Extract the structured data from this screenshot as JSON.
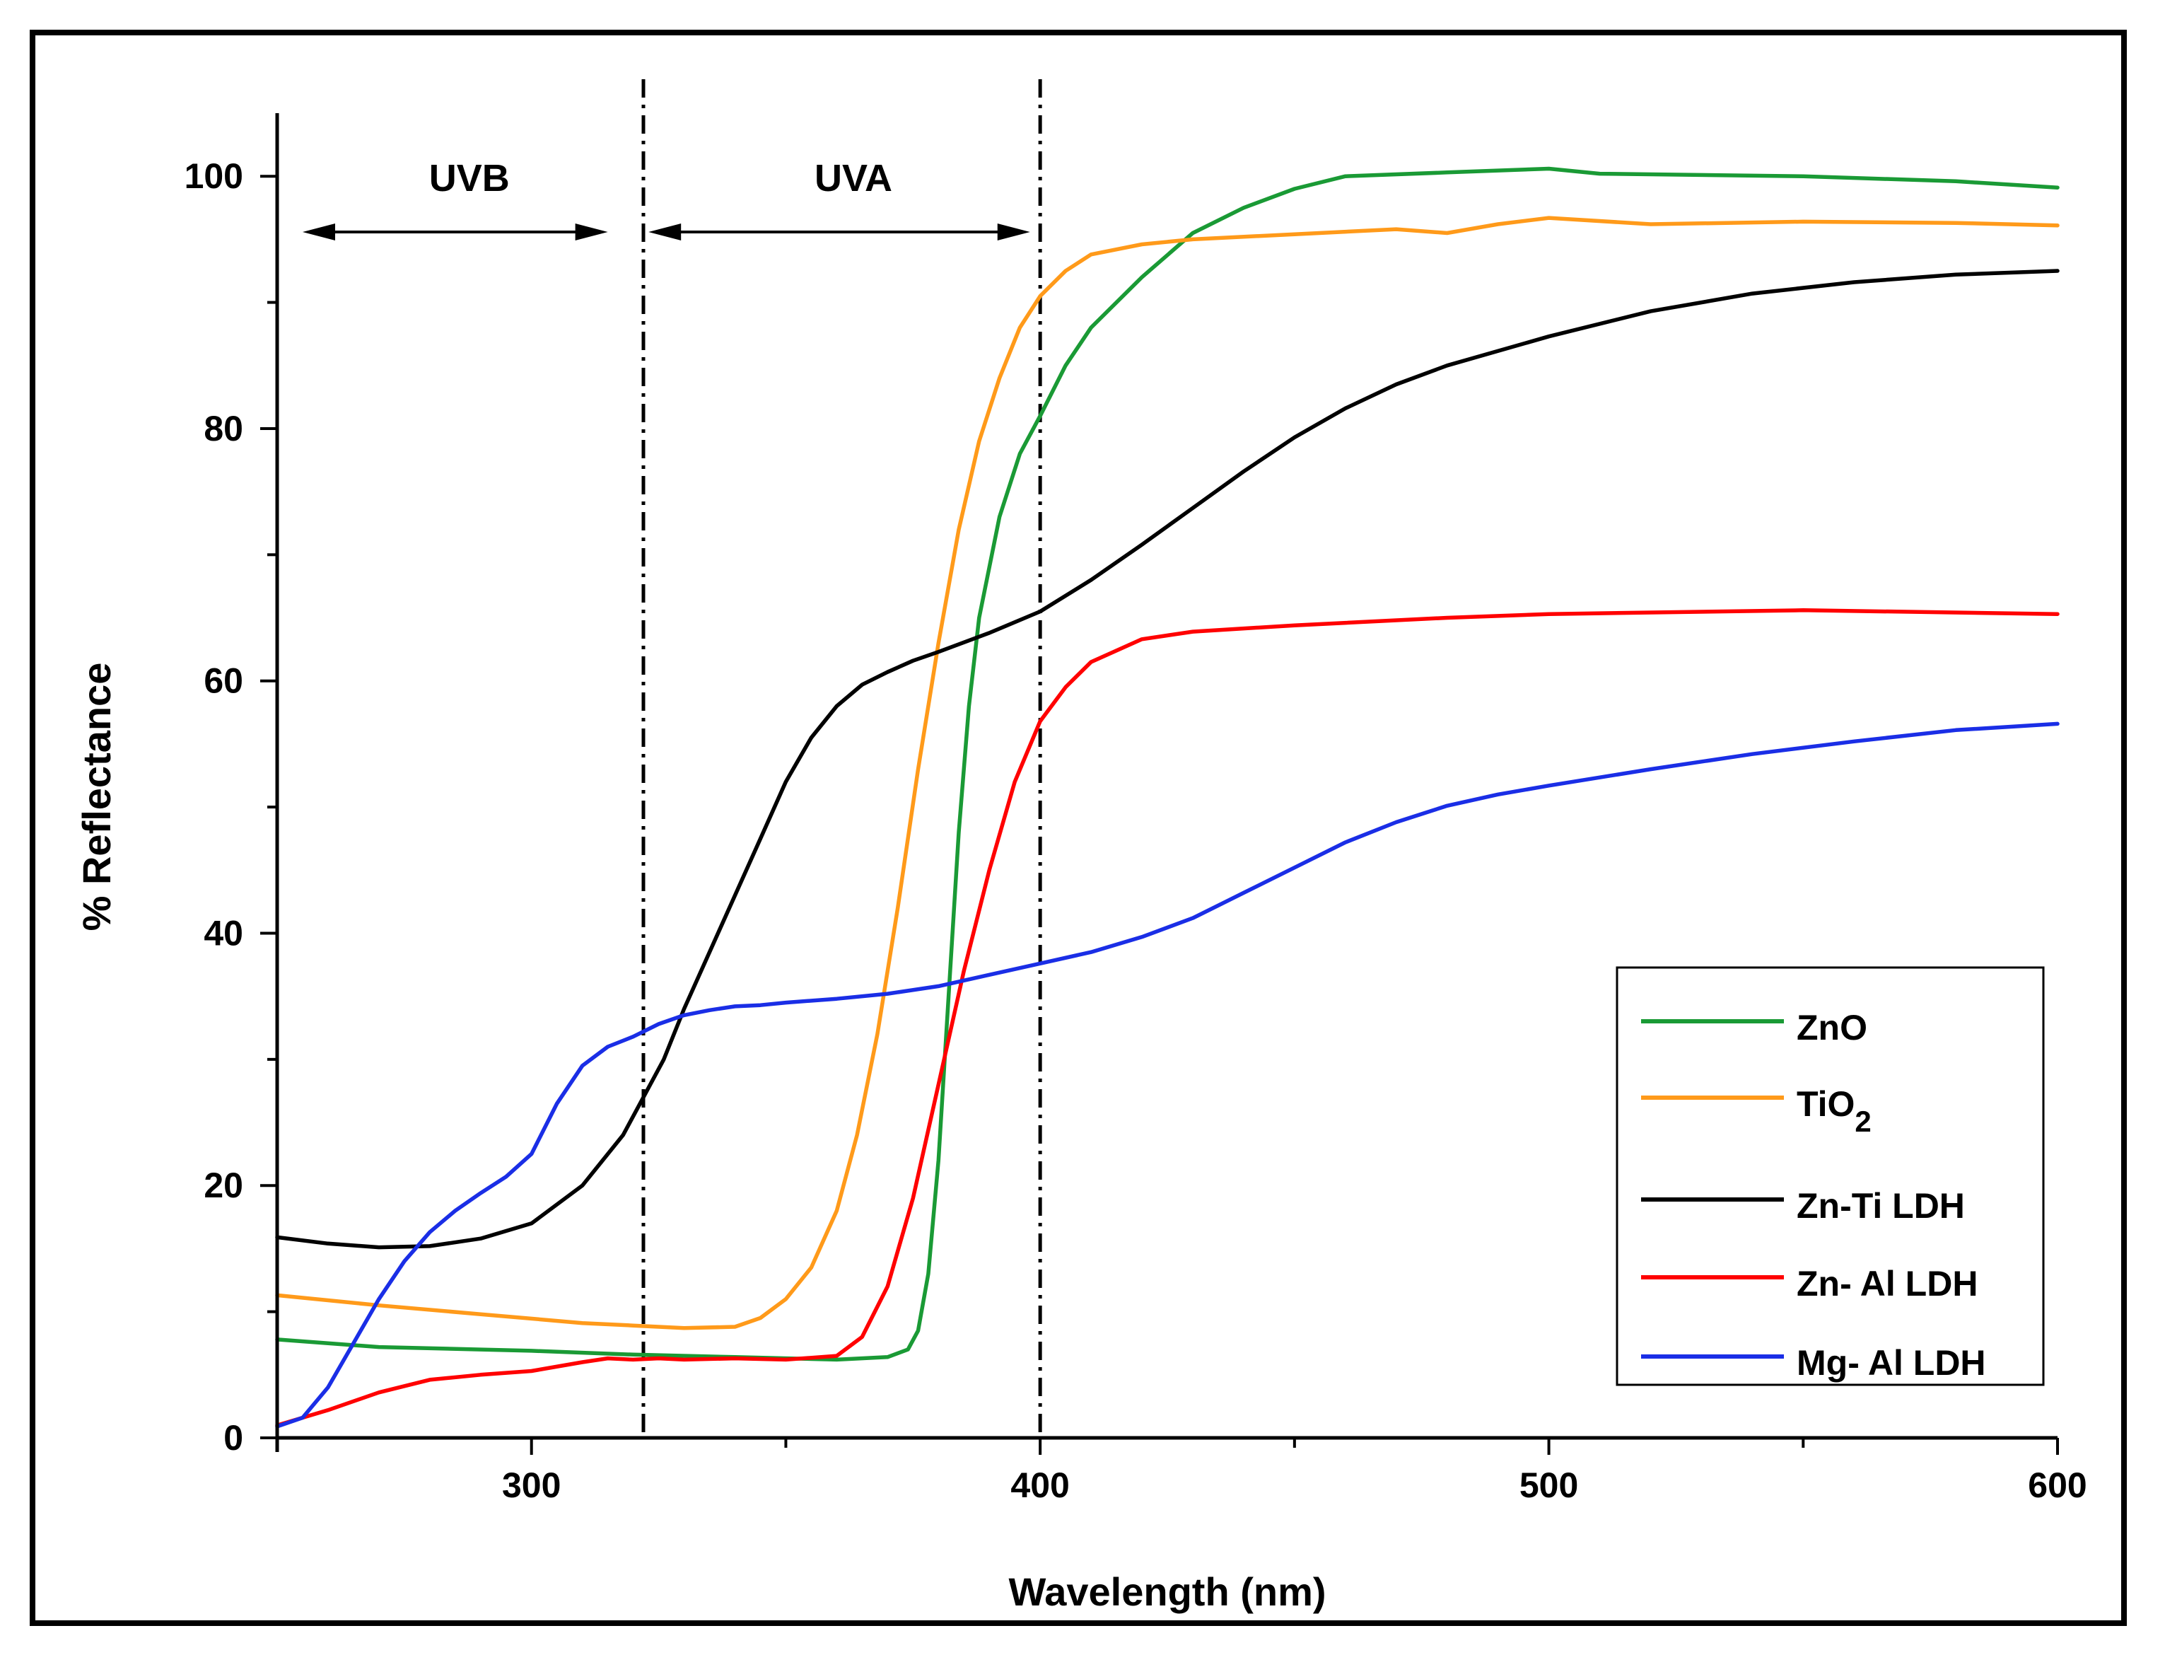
{
  "chart_data": {
    "type": "line",
    "xlabel": "Wavelength (nm)",
    "ylabel": "% Reflectance",
    "xlim": [
      250,
      600
    ],
    "ylim": [
      0,
      105
    ],
    "xticks": [
      300,
      400,
      500,
      600
    ],
    "yticks": [
      0,
      20,
      40,
      60,
      80,
      100
    ],
    "x_minor_step": 50,
    "y_minor_step": 10,
    "grid": false,
    "legend_position": "bottom-right",
    "regions": [
      {
        "label": "UVB",
        "from": 255,
        "to": 315
      },
      {
        "label": "UVA",
        "from": 323,
        "to": 398
      }
    ],
    "divider_lines": [
      322,
      400
    ],
    "series": [
      {
        "name": "ZnO",
        "color": "#1a9a35",
        "points": [
          [
            250,
            7.8
          ],
          [
            270,
            7.2
          ],
          [
            300,
            6.9
          ],
          [
            320,
            6.6
          ],
          [
            340,
            6.4
          ],
          [
            360,
            6.2
          ],
          [
            370,
            6.4
          ],
          [
            374,
            7.0
          ],
          [
            376,
            8.5
          ],
          [
            378,
            13
          ],
          [
            380,
            22
          ],
          [
            382,
            35
          ],
          [
            384,
            48
          ],
          [
            386,
            58
          ],
          [
            388,
            65
          ],
          [
            392,
            73
          ],
          [
            396,
            78
          ],
          [
            400,
            81
          ],
          [
            405,
            85
          ],
          [
            410,
            88
          ],
          [
            420,
            92
          ],
          [
            430,
            95.5
          ],
          [
            440,
            97.5
          ],
          [
            450,
            99
          ],
          [
            460,
            100
          ],
          [
            480,
            100.3
          ],
          [
            500,
            100.6
          ],
          [
            510,
            100.2
          ],
          [
            550,
            100
          ],
          [
            580,
            99.6
          ],
          [
            600,
            99.1
          ]
        ]
      },
      {
        "name": "TiO2",
        "name_main": "TiO",
        "name_sub": "2",
        "color": "#ff9a1a",
        "points": [
          [
            250,
            11.3
          ],
          [
            270,
            10.5
          ],
          [
            290,
            9.8
          ],
          [
            310,
            9.1
          ],
          [
            320,
            8.9
          ],
          [
            330,
            8.7
          ],
          [
            340,
            8.8
          ],
          [
            345,
            9.5
          ],
          [
            350,
            11
          ],
          [
            355,
            13.5
          ],
          [
            360,
            18
          ],
          [
            364,
            24
          ],
          [
            368,
            32
          ],
          [
            372,
            42
          ],
          [
            376,
            53
          ],
          [
            380,
            63
          ],
          [
            384,
            72
          ],
          [
            388,
            79
          ],
          [
            392,
            84
          ],
          [
            396,
            88
          ],
          [
            400,
            90.5
          ],
          [
            405,
            92.5
          ],
          [
            410,
            93.8
          ],
          [
            420,
            94.6
          ],
          [
            430,
            95
          ],
          [
            450,
            95.4
          ],
          [
            470,
            95.8
          ],
          [
            480,
            95.5
          ],
          [
            490,
            96.2
          ],
          [
            500,
            96.7
          ],
          [
            520,
            96.2
          ],
          [
            550,
            96.4
          ],
          [
            580,
            96.3
          ],
          [
            600,
            96.1
          ]
        ]
      },
      {
        "name": "Zn-Ti LDH",
        "color": "#000000",
        "points": [
          [
            250,
            15.9
          ],
          [
            260,
            15.4
          ],
          [
            270,
            15.1
          ],
          [
            280,
            15.2
          ],
          [
            290,
            15.8
          ],
          [
            300,
            17
          ],
          [
            310,
            20
          ],
          [
            318,
            24
          ],
          [
            322,
            27
          ],
          [
            326,
            30
          ],
          [
            330,
            34
          ],
          [
            335,
            38.5
          ],
          [
            340,
            43
          ],
          [
            345,
            47.5
          ],
          [
            350,
            52
          ],
          [
            355,
            55.5
          ],
          [
            360,
            58
          ],
          [
            365,
            59.7
          ],
          [
            370,
            60.7
          ],
          [
            375,
            61.6
          ],
          [
            380,
            62.3
          ],
          [
            390,
            63.8
          ],
          [
            400,
            65.5
          ],
          [
            410,
            68
          ],
          [
            420,
            70.8
          ],
          [
            430,
            73.7
          ],
          [
            440,
            76.6
          ],
          [
            450,
            79.3
          ],
          [
            460,
            81.6
          ],
          [
            470,
            83.5
          ],
          [
            480,
            85
          ],
          [
            500,
            87.3
          ],
          [
            520,
            89.3
          ],
          [
            540,
            90.7
          ],
          [
            560,
            91.6
          ],
          [
            580,
            92.2
          ],
          [
            600,
            92.5
          ]
        ]
      },
      {
        "name": "Zn- Al LDH",
        "color": "#ff0000",
        "points": [
          [
            250,
            1
          ],
          [
            260,
            2.2
          ],
          [
            270,
            3.6
          ],
          [
            280,
            4.6
          ],
          [
            290,
            5
          ],
          [
            300,
            5.3
          ],
          [
            310,
            6
          ],
          [
            315,
            6.3
          ],
          [
            320,
            6.2
          ],
          [
            325,
            6.3
          ],
          [
            330,
            6.2
          ],
          [
            340,
            6.3
          ],
          [
            350,
            6.2
          ],
          [
            360,
            6.5
          ],
          [
            365,
            8
          ],
          [
            370,
            12
          ],
          [
            375,
            19
          ],
          [
            380,
            28
          ],
          [
            385,
            37
          ],
          [
            390,
            45
          ],
          [
            395,
            52
          ],
          [
            400,
            56.8
          ],
          [
            405,
            59.5
          ],
          [
            410,
            61.5
          ],
          [
            420,
            63.3
          ],
          [
            430,
            63.9
          ],
          [
            450,
            64.4
          ],
          [
            480,
            65
          ],
          [
            500,
            65.3
          ],
          [
            550,
            65.6
          ],
          [
            600,
            65.3
          ]
        ]
      },
      {
        "name": "Mg- Al LDH",
        "color": "#1a2ee6",
        "points": [
          [
            250,
            0.9
          ],
          [
            255,
            1.6
          ],
          [
            260,
            4
          ],
          [
            265,
            7.5
          ],
          [
            270,
            11
          ],
          [
            275,
            14
          ],
          [
            280,
            16.3
          ],
          [
            285,
            18
          ],
          [
            290,
            19.4
          ],
          [
            295,
            20.7
          ],
          [
            300,
            22.5
          ],
          [
            305,
            26.5
          ],
          [
            310,
            29.5
          ],
          [
            315,
            31
          ],
          [
            320,
            31.8
          ],
          [
            325,
            32.8
          ],
          [
            330,
            33.5
          ],
          [
            335,
            33.9
          ],
          [
            340,
            34.2
          ],
          [
            345,
            34.3
          ],
          [
            350,
            34.5
          ],
          [
            360,
            34.8
          ],
          [
            370,
            35.2
          ],
          [
            380,
            35.8
          ],
          [
            390,
            36.7
          ],
          [
            400,
            37.6
          ],
          [
            410,
            38.5
          ],
          [
            420,
            39.7
          ],
          [
            430,
            41.2
          ],
          [
            440,
            43.2
          ],
          [
            450,
            45.2
          ],
          [
            460,
            47.2
          ],
          [
            470,
            48.8
          ],
          [
            480,
            50.1
          ],
          [
            490,
            51
          ],
          [
            500,
            51.7
          ],
          [
            520,
            53
          ],
          [
            540,
            54.2
          ],
          [
            560,
            55.2
          ],
          [
            580,
            56.1
          ],
          [
            600,
            56.6
          ]
        ]
      }
    ]
  }
}
